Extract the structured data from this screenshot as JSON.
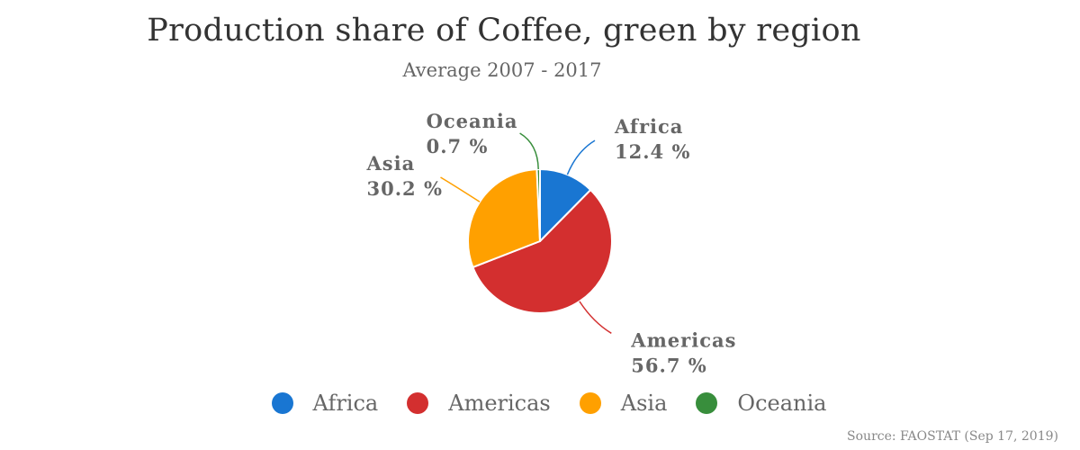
{
  "chart_data": {
    "type": "pie",
    "title": "Production share of Coffee, green by region",
    "subtitle": "Average 2007 - 2017",
    "slices": [
      {
        "name": "Africa",
        "value": 12.4,
        "label": "12.4 %",
        "color": "#1976d2",
        "label_side": "right"
      },
      {
        "name": "Americas",
        "value": 56.7,
        "label": "56.7 %",
        "color": "#d32f2f",
        "label_side": "right"
      },
      {
        "name": "Asia",
        "value": 30.2,
        "label": "30.2 %",
        "color": "#ffa000",
        "label_side": "left"
      },
      {
        "name": "Oceania",
        "value": 0.7,
        "label": "0.7 %",
        "color": "#388e3c",
        "label_side": "left"
      }
    ],
    "legend": {
      "placement": "bottom",
      "entries": [
        "Africa",
        "Americas",
        "Asia",
        "Oceania"
      ]
    },
    "source": "Source: FAOSTAT (Sep 17, 2019)"
  }
}
